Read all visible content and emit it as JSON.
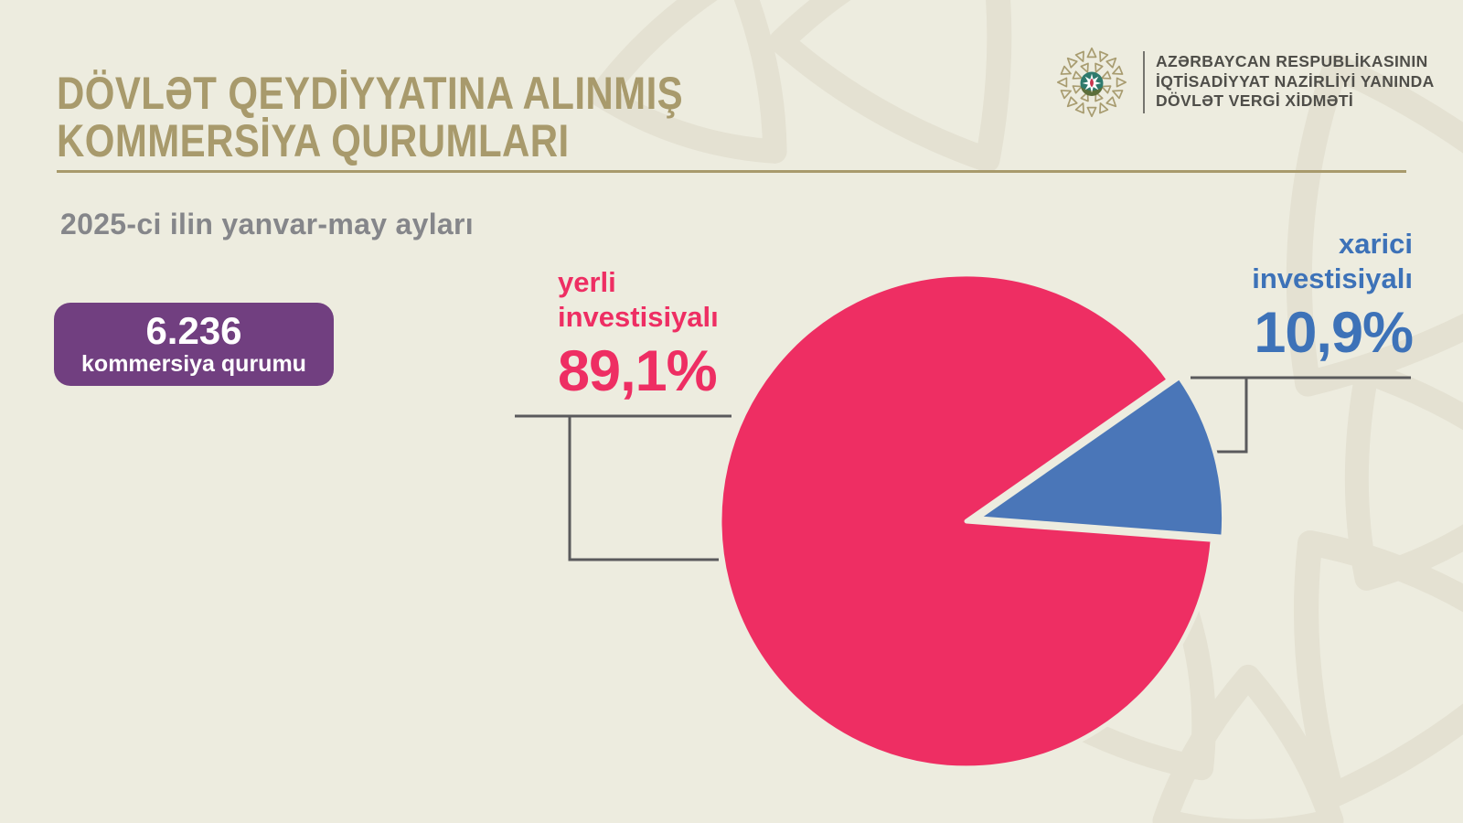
{
  "header": {
    "title_line1": "DÖVLƏT QEYDİYYATINA ALINMIŞ",
    "title_line2": "KOMMERSİYA QURUMLARI",
    "org_line1": "AZƏRBAYCAN RESPUBLİKASININ",
    "org_line2": "İQTİSADİYYAT NAZİRLİYİ YANINDA",
    "org_line3": "DÖVLƏT VERGİ XİDMƏTİ"
  },
  "period": "2025-ci ilin yanvar-may ayları",
  "badge": {
    "value": "6.236",
    "label": "kommersiya qurumu"
  },
  "labels": {
    "yerli_line1": "yerli",
    "yerli_line2": "investisiyalı",
    "yerli_pct": "89,1%",
    "xarici_line1": "xarici",
    "xarici_line2": "investisiyalı",
    "xarici_pct": "10,9%"
  },
  "chart_data": {
    "type": "pie",
    "title": "Dövlət qeydiyyatına alınmış kommersiya qurumları",
    "period": "2025-ci ilin yanvar-may ayları",
    "total_value": "6.236",
    "total_label": "kommersiya qurumu",
    "categories": [
      "yerli investisiyalı",
      "xarici investisiyalı"
    ],
    "values": [
      89.1,
      10.9
    ],
    "slices": [
      {
        "label": "yerli investisiyalı",
        "value_pct": 89.1,
        "display": "89,1%",
        "color": "#ee2e63",
        "text_color": "#ee2e63"
      },
      {
        "label": "xarici investisiyalı",
        "value_pct": 10.9,
        "display": "10,9%",
        "color": "#4a76b8",
        "text_color": "#3d72b8"
      }
    ],
    "legend_position": "callout-labels",
    "exploded_slice": "xarici investisiyalı"
  },
  "colors": {
    "background": "#edecdf",
    "pattern": "#e4e1d2",
    "title_khaki": "#a89a6c",
    "subtitle_gray": "#85868a",
    "badge_purple": "#713f80",
    "callout_gray": "#5a5a5c",
    "org_text": "#4f4e49",
    "logo_khaki": "#a89c70",
    "logo_teal": "#2e7a6d",
    "logo_red": "#c9344e"
  }
}
